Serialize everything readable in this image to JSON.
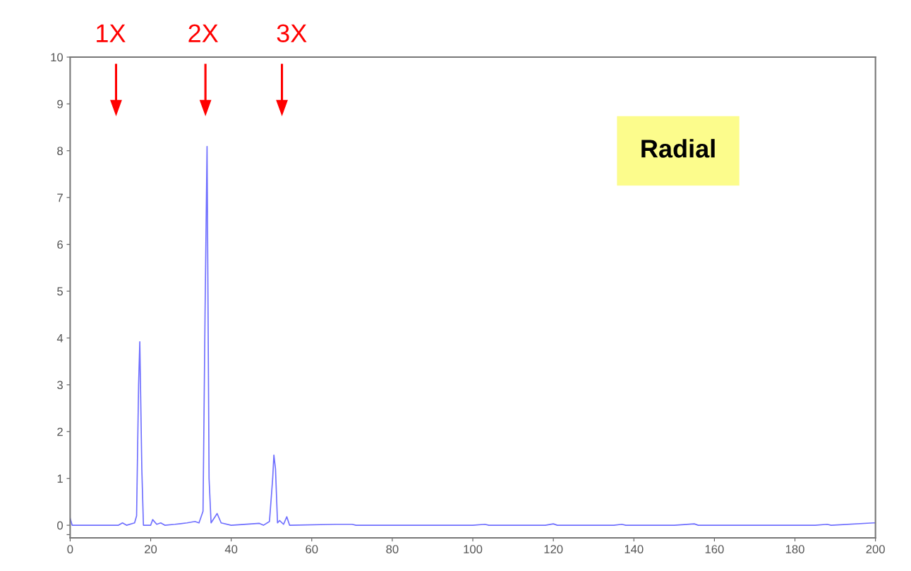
{
  "chart_data": {
    "type": "line",
    "x": [
      0,
      0.5,
      12,
      13,
      14,
      16,
      16.5,
      17,
      17.3,
      17.8,
      18.2,
      20,
      20.5,
      21.5,
      22.5,
      23.5,
      26,
      29,
      31,
      32,
      33,
      33.5,
      34,
      34.5,
      35,
      36.5,
      37.5,
      40,
      47,
      48,
      49.5,
      50.3,
      50.6,
      51,
      51.5,
      52,
      53,
      53.8,
      54.5,
      66,
      70,
      71,
      100,
      103,
      104,
      118,
      120,
      121,
      135,
      137,
      138,
      150,
      155,
      156,
      185,
      188,
      189,
      199.5,
      200
    ],
    "series": [
      {
        "color": "#6f6fff",
        "values": [
          0.15,
          0.0,
          0.0,
          0.05,
          0.0,
          0.05,
          0.2,
          3.0,
          3.92,
          1.2,
          0.0,
          0.0,
          0.12,
          0.02,
          0.05,
          0.0,
          0.02,
          0.05,
          0.08,
          0.05,
          0.3,
          4.5,
          8.09,
          1.0,
          0.05,
          0.25,
          0.05,
          0.0,
          0.04,
          0.0,
          0.08,
          1.0,
          1.5,
          1.2,
          0.05,
          0.1,
          0.02,
          0.18,
          0.0,
          0.02,
          0.02,
          0.0,
          0.0,
          0.02,
          0.0,
          0.0,
          0.03,
          0.0,
          0.0,
          0.02,
          0.0,
          0.0,
          0.03,
          0.0,
          0.0,
          0.02,
          0.0,
          0.05,
          0.05
        ]
      }
    ],
    "xlim": [
      0,
      200
    ],
    "xticks": [
      0,
      20,
      40,
      60,
      80,
      100,
      120,
      140,
      160,
      180,
      200
    ],
    "ylim": [
      -0.27,
      10
    ],
    "yticks": [
      {
        "value": -0.2,
        "label": null
      },
      0,
      1,
      2,
      3,
      4,
      5,
      6,
      7,
      8,
      9,
      10
    ],
    "annotations": [
      "1X",
      "2X",
      "3X",
      "Radial"
    ],
    "grid": false,
    "marker": "none",
    "line_style": "solid"
  }
}
